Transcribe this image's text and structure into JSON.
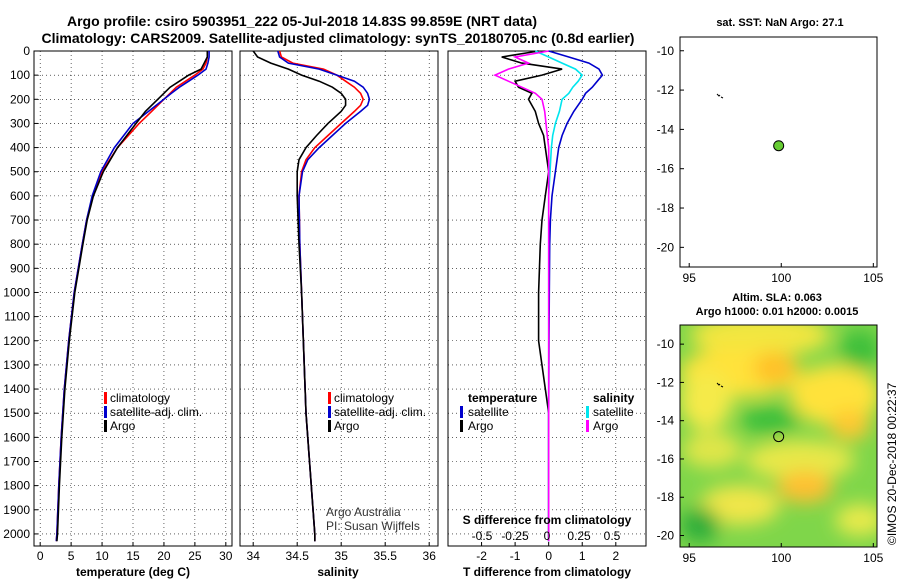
{
  "header": {
    "title_line1": "Argo profile: csiro 5903951_222 05-Jul-2018 14.83S 99.859E (NRT data)",
    "title_line2": "Climatology: CARS2009. Satellite-adjusted climatology: synTS_20180705.nc (0.8d earlier)"
  },
  "colors": {
    "climatology": "#ff0000",
    "satellite": "#0000cc",
    "argo": "#000000",
    "sat_s": "#00e5ee",
    "argo_s": "#ff00ff",
    "marker": "#66cc33"
  },
  "chart_data": [
    {
      "type": "line",
      "name": "temperature-profile",
      "xlabel": "temperature (deg C)",
      "ylabel": "",
      "xlim": [
        -1,
        31
      ],
      "ylim": [
        2050,
        0
      ],
      "xticks": [
        "0",
        "5",
        "10",
        "15",
        "20",
        "25",
        "30"
      ],
      "yticks": [
        "0",
        "100",
        "200",
        "300",
        "400",
        "500",
        "600",
        "700",
        "800",
        "900",
        "1000",
        "1100",
        "1200",
        "1300",
        "1400",
        "1500",
        "1600",
        "1700",
        "1800",
        "1900",
        "2000"
      ],
      "depth": [
        0,
        25,
        50,
        75,
        100,
        125,
        150,
        175,
        200,
        250,
        300,
        400,
        500,
        600,
        700,
        800,
        1000,
        1200,
        1400,
        1600,
        1800,
        2000,
        2030
      ],
      "series": [
        {
          "name": "climatology",
          "color": "#ff0000",
          "values": [
            27,
            27,
            26.8,
            26.3,
            25,
            23.5,
            22,
            21,
            20,
            18,
            16,
            12.5,
            10,
            8.5,
            7.5,
            6.8,
            5.5,
            4.6,
            3.9,
            3.4,
            3,
            2.7,
            2.6
          ]
        },
        {
          "name": "satellite-adj. clim.",
          "color": "#0000cc",
          "values": [
            27.3,
            27.3,
            27.1,
            26.8,
            25.5,
            24,
            22.5,
            21.2,
            20,
            17.5,
            15,
            12,
            9.8,
            8.4,
            7.5,
            6.8,
            5.5,
            4.6,
            3.9,
            3.4,
            3,
            2.7,
            2.6
          ]
        },
        {
          "name": "Argo",
          "color": "#000000",
          "values": [
            27,
            27,
            26.5,
            26,
            24,
            22.5,
            21,
            20,
            19,
            17,
            15.5,
            12.5,
            10.2,
            8.6,
            7.6,
            6.9,
            5.6,
            4.7,
            4,
            3.5,
            3.1,
            2.8,
            2.7
          ]
        }
      ],
      "legend": [
        "climatology",
        "satellite-adj. clim.",
        "Argo"
      ]
    },
    {
      "type": "line",
      "name": "salinity-profile",
      "xlabel": "salinity",
      "xlim": [
        33.85,
        36.1
      ],
      "ylim": [
        2050,
        0
      ],
      "xticks": [
        "34",
        "34.5",
        "35",
        "35.5",
        "36"
      ],
      "depth": [
        0,
        25,
        50,
        75,
        100,
        125,
        150,
        175,
        200,
        225,
        250,
        300,
        350,
        400,
        450,
        500,
        600,
        800,
        1000,
        1500,
        2000,
        2030
      ],
      "series": [
        {
          "name": "climatology",
          "color": "#ff0000",
          "values": [
            34.3,
            34.32,
            34.45,
            34.8,
            34.95,
            35.05,
            35.15,
            35.22,
            35.25,
            35.22,
            35.15,
            35.0,
            34.85,
            34.7,
            34.6,
            34.55,
            34.52,
            34.53,
            34.55,
            34.6,
            34.7,
            34.7
          ]
        },
        {
          "name": "satellite-adj. clim.",
          "color": "#0000cc",
          "values": [
            34.28,
            34.3,
            34.4,
            34.75,
            34.95,
            35.15,
            35.25,
            35.3,
            35.32,
            35.3,
            35.22,
            35.05,
            34.9,
            34.75,
            34.62,
            34.56,
            34.52,
            34.53,
            34.55,
            34.6,
            34.7,
            34.7
          ]
        },
        {
          "name": "Argo",
          "color": "#000000",
          "values": [
            34.0,
            34.05,
            34.2,
            34.4,
            34.55,
            34.75,
            34.9,
            35.0,
            35.05,
            35.05,
            35.0,
            34.85,
            34.72,
            34.6,
            34.52,
            34.5,
            34.5,
            34.52,
            34.55,
            34.6,
            34.7,
            34.7
          ]
        }
      ],
      "legend": [
        "climatology",
        "satellite-adj. clim.",
        "Argo"
      ],
      "credit_line1": "Argo Australia",
      "credit_line2": "PI: Susan Wijffels"
    },
    {
      "type": "line",
      "name": "difference-profile",
      "xlabel": "T difference from climatology",
      "xlabel_top": "S difference from climatology",
      "xlim": [
        -3,
        2.9
      ],
      "ylim": [
        2050,
        0
      ],
      "xticks": [
        "-2",
        "-1",
        "0",
        "1",
        "2"
      ],
      "xticks_s": [
        "-0.5",
        "-0.25",
        "0",
        "0.25",
        "0.5"
      ],
      "depth": [
        0,
        25,
        50,
        75,
        100,
        125,
        150,
        175,
        200,
        250,
        300,
        350,
        400,
        500,
        600,
        700,
        800,
        1000,
        1200,
        1500,
        2000,
        2030
      ],
      "series": [
        {
          "name": "T satellite",
          "color": "#0000cc",
          "values": [
            0,
            0.6,
            1.2,
            1.5,
            1.6,
            1.45,
            1.3,
            1.1,
            1.0,
            0.75,
            0.55,
            0.4,
            0.3,
            0.2,
            0.1,
            0.05,
            0.03,
            0.02,
            0.01,
            0.0,
            0.0,
            0.0
          ]
        },
        {
          "name": "T Argo",
          "color": "#000000",
          "values": [
            -0.3,
            -1.4,
            -0.8,
            0.4,
            -0.2,
            -1.0,
            -0.9,
            -0.5,
            -0.6,
            -0.4,
            -0.3,
            -0.15,
            -0.1,
            0.0,
            -0.1,
            -0.2,
            -0.25,
            -0.3,
            -0.3,
            0.0,
            0.0,
            0.0
          ]
        },
        {
          "name": "S satellite",
          "color": "#00e5ee",
          "values": [
            -0.1,
            0.0,
            0.1,
            0.2,
            0.25,
            0.22,
            0.18,
            0.15,
            0.1,
            0.08,
            0.05,
            0.03,
            0.02,
            0.01,
            0.0,
            0.0,
            0.0,
            0.0,
            0.0,
            0.0,
            0.0,
            0.0
          ]
        },
        {
          "name": "S Argo",
          "color": "#ff00ff",
          "values": [
            0.0,
            -0.25,
            -0.15,
            -0.3,
            -0.4,
            -0.3,
            -0.2,
            -0.1,
            -0.05,
            -0.03,
            -0.02,
            -0.01,
            0.0,
            0.0,
            0.0,
            0.0,
            0.0,
            0.0,
            0.0,
            0.0,
            0.0,
            0.0
          ]
        }
      ],
      "legend_left_title": "temperature",
      "legend_right_title": "salinity",
      "legend_left": [
        "satellite",
        "Argo"
      ],
      "legend_right": [
        "satellite",
        "Argo"
      ]
    },
    {
      "type": "scatter",
      "name": "sst-map",
      "title": "sat. SST: NaN Argo: 27.1",
      "xlim": [
        94.5,
        105.2
      ],
      "ylim": [
        -21,
        -9.3
      ],
      "xticks": [
        "95",
        "100",
        "105"
      ],
      "yticks": [
        "-10",
        "-12",
        "-14",
        "-16",
        "-18",
        "-20"
      ],
      "points": [
        {
          "lon": 99.859,
          "lat": -14.83
        }
      ]
    },
    {
      "type": "heatmap",
      "name": "sla-map",
      "title": "Altim. SLA: 0.063",
      "subtitle": "Argo h1000: 0.01 h2000: 0.0015",
      "xlim": [
        94.5,
        105.2
      ],
      "ylim": [
        -20.6,
        -9.0
      ],
      "xticks": [
        "95",
        "100",
        "105"
      ],
      "yticks": [
        "-10",
        "-12",
        "-14",
        "-16",
        "-18",
        "-20"
      ],
      "points": [
        {
          "lon": 99.859,
          "lat": -14.83
        }
      ]
    }
  ],
  "footer": {
    "credit": "©IMOS 20-Dec-2018 00:22:37"
  }
}
